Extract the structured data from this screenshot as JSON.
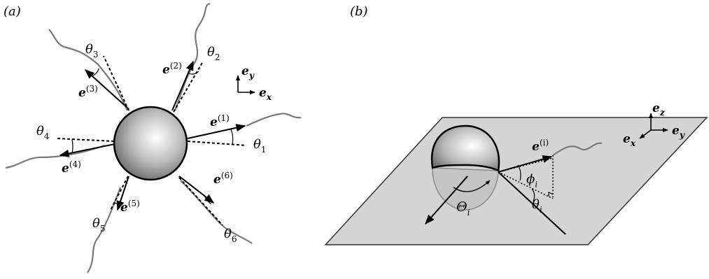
{
  "panel_a": {
    "label": "(a)",
    "axes": {
      "y_base": "e",
      "y_sub": "y",
      "x_base": "e",
      "x_sub": "x"
    },
    "flagella": [
      {
        "vec": "e",
        "idx": "(1)",
        "ang": "θ",
        "ang_sub": "1"
      },
      {
        "vec": "e",
        "idx": "(2)",
        "ang": "θ",
        "ang_sub": "2"
      },
      {
        "vec": "e",
        "idx": "(3)",
        "ang": "θ",
        "ang_sub": "3"
      },
      {
        "vec": "e",
        "idx": "(4)",
        "ang": "θ",
        "ang_sub": "4"
      },
      {
        "vec": "e",
        "idx": "(5)",
        "ang": "θ",
        "ang_sub": "5"
      },
      {
        "vec": "e",
        "idx": "(6)",
        "ang": "θ",
        "ang_sub": "6"
      }
    ]
  },
  "panel_b": {
    "label": "(b)",
    "axes": {
      "z_base": "e",
      "z_sub": "z",
      "x_base": "e",
      "x_sub": "x",
      "y_base": "e",
      "y_sub": "y"
    },
    "vector": {
      "base": "e",
      "idx": "(i)"
    },
    "phi": {
      "sym": "ϕ",
      "sub": "i"
    },
    "theta": {
      "sym": "θ",
      "sub": "i"
    },
    "Theta": {
      "sym": "Θ",
      "sub": "i"
    }
  },
  "colors": {
    "line": "#000000",
    "wave": "#7a7a7a",
    "plane": "#d4d4d4"
  }
}
